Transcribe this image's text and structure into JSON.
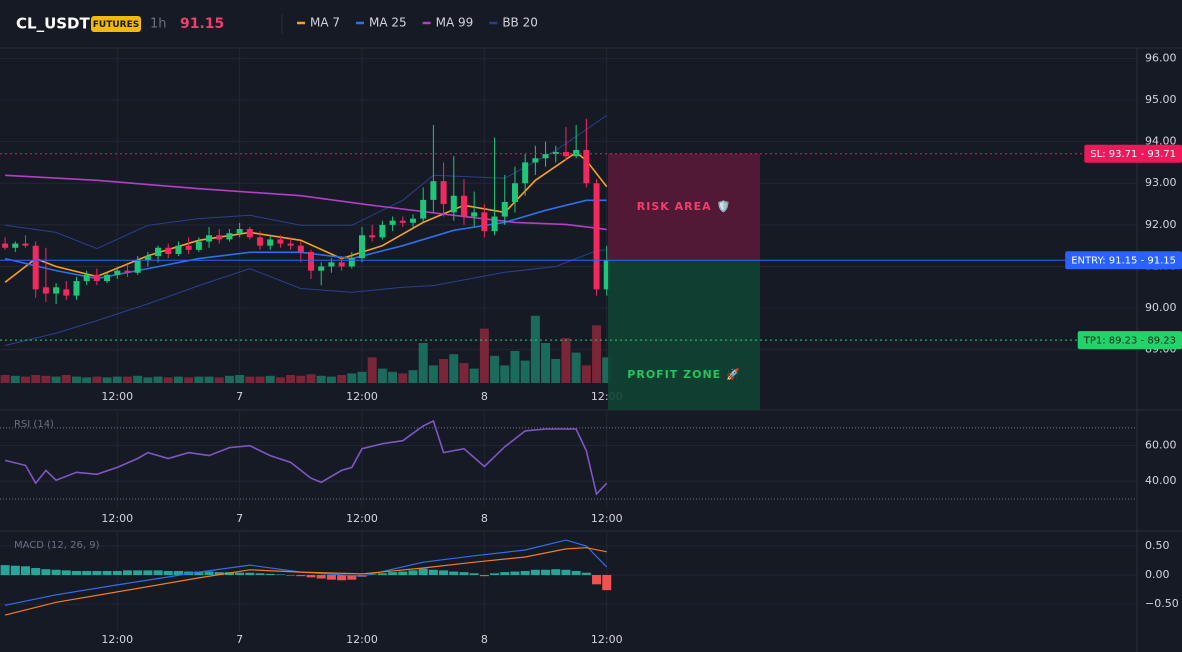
{
  "header": {
    "symbol": "CL_USDT",
    "badge": "FUTURES",
    "interval": "1h",
    "price": 91.15
  },
  "chart_data": [
    {
      "type": "candlestick",
      "up_color": "#1fc67a",
      "down_color": "#f2295f",
      "volume_up_color": "#1b6b5c",
      "volume_down_color": "#7a2538",
      "open": [
        91.55,
        91.45,
        91.55,
        91.5,
        90.5,
        90.35,
        90.45,
        90.3,
        90.65,
        90.8,
        90.65,
        90.8,
        90.9,
        90.85,
        91.15,
        91.25,
        91.45,
        91.3,
        91.5,
        91.4,
        91.6,
        91.75,
        91.65,
        91.8,
        91.9,
        91.7,
        91.5,
        91.65,
        91.55,
        91.5,
        91.35,
        90.9,
        91.0,
        91.1,
        91.0,
        91.2,
        91.75,
        91.7,
        92.0,
        92.1,
        92.05,
        92.15,
        92.6,
        93.05,
        92.3,
        92.7,
        92.2,
        92.3,
        91.85,
        92.2,
        92.55,
        93.0,
        93.5,
        93.6,
        93.7,
        93.75,
        93.65,
        93.8,
        93.0,
        90.45
      ],
      "high": [
        91.7,
        91.6,
        91.75,
        91.6,
        91.45,
        90.6,
        90.65,
        90.75,
        90.9,
        90.95,
        90.85,
        91.0,
        91.05,
        91.25,
        91.35,
        91.5,
        91.55,
        91.6,
        91.7,
        91.7,
        91.95,
        91.9,
        91.9,
        92.05,
        91.95,
        91.85,
        91.75,
        91.75,
        91.7,
        91.6,
        91.4,
        91.1,
        91.2,
        91.25,
        91.35,
        91.95,
        92.0,
        92.1,
        92.2,
        92.2,
        92.25,
        92.9,
        94.4,
        93.5,
        93.65,
        93.1,
        92.8,
        92.5,
        94.1,
        93.2,
        93.4,
        93.7,
        93.9,
        94.0,
        93.9,
        94.35,
        94.4,
        94.55,
        93.1,
        91.5
      ],
      "low": [
        91.4,
        91.35,
        91.45,
        90.25,
        90.15,
        90.1,
        90.2,
        90.2,
        90.55,
        90.55,
        90.6,
        90.7,
        90.75,
        90.8,
        91.0,
        91.1,
        91.2,
        91.25,
        91.3,
        91.35,
        91.45,
        91.55,
        91.6,
        91.7,
        91.65,
        91.4,
        91.4,
        91.45,
        91.4,
        91.1,
        90.7,
        90.55,
        90.85,
        90.9,
        90.95,
        91.1,
        91.6,
        91.65,
        91.85,
        91.95,
        91.95,
        92.05,
        92.3,
        92.2,
        92.1,
        92.0,
        91.95,
        91.7,
        91.75,
        92.0,
        92.3,
        92.7,
        93.2,
        93.4,
        93.5,
        93.55,
        93.6,
        92.9,
        90.3,
        90.3
      ],
      "close": [
        91.45,
        91.55,
        91.5,
        90.45,
        90.35,
        90.5,
        90.3,
        90.65,
        90.8,
        90.65,
        90.8,
        90.9,
        90.85,
        91.15,
        91.25,
        91.45,
        91.3,
        91.5,
        91.4,
        91.6,
        91.75,
        91.65,
        91.8,
        91.9,
        91.7,
        91.5,
        91.65,
        91.55,
        91.5,
        91.35,
        90.9,
        91.0,
        91.1,
        91.0,
        91.2,
        91.75,
        91.7,
        92.0,
        92.1,
        92.05,
        92.15,
        92.6,
        93.05,
        92.5,
        92.7,
        92.2,
        92.3,
        91.85,
        92.2,
        92.55,
        93.0,
        93.5,
        93.6,
        93.7,
        93.75,
        93.65,
        93.8,
        93.0,
        90.45,
        91.15
      ],
      "volume": [
        10,
        9,
        8,
        10,
        9,
        8,
        10,
        8,
        7,
        8,
        7,
        8,
        8,
        9,
        7,
        8,
        7,
        8,
        7,
        8,
        8,
        7,
        9,
        10,
        8,
        8,
        9,
        7,
        10,
        9,
        11,
        9,
        8,
        10,
        12,
        14,
        32,
        18,
        14,
        12,
        16,
        50,
        22,
        30,
        36,
        25,
        18,
        68,
        34,
        22,
        40,
        28,
        84,
        50,
        30,
        56,
        38,
        22,
        72,
        32
      ],
      "series": [
        {
          "name": "MA 7",
          "color": "#f7a21b",
          "x": [
            0,
            3,
            5,
            9,
            14,
            19,
            24,
            29,
            33,
            37,
            41,
            45,
            49,
            52,
            56,
            57,
            59
          ],
          "values": [
            90.62,
            91.19,
            91.0,
            90.76,
            91.26,
            91.63,
            91.82,
            91.63,
            91.19,
            91.5,
            92.06,
            92.47,
            92.3,
            93.07,
            93.74,
            93.55,
            92.92
          ]
        },
        {
          "name": "MA 25",
          "color": "#2f6fec",
          "x": [
            0,
            5,
            9,
            14,
            19,
            24,
            29,
            34,
            39,
            44,
            49,
            53,
            57,
            59
          ],
          "values": [
            91.19,
            90.9,
            90.71,
            90.95,
            91.19,
            91.34,
            91.34,
            91.19,
            91.5,
            91.87,
            92.06,
            92.35,
            92.59,
            92.59
          ]
        },
        {
          "name": "MA 99",
          "color": "#b23fc4",
          "x": [
            0,
            9,
            19,
            29,
            36,
            44,
            50,
            55,
            59
          ],
          "values": [
            93.19,
            93.07,
            92.87,
            92.7,
            92.47,
            92.23,
            92.06,
            92.01,
            91.89
          ]
        }
      ],
      "bands": {
        "name": "BB 20",
        "color": "#2a3f8f",
        "x": [
          0,
          5,
          9,
          14,
          19,
          24,
          29,
          34,
          39,
          42,
          49,
          54,
          58,
          59
        ],
        "upper": [
          91.99,
          91.82,
          91.43,
          91.99,
          92.15,
          92.23,
          91.99,
          91.99,
          92.59,
          93.19,
          93.12,
          93.79,
          94.46,
          94.63
        ],
        "lower": [
          89.1,
          89.4,
          89.7,
          90.1,
          90.54,
          90.95,
          90.47,
          90.38,
          90.5,
          90.54,
          90.86,
          91.0,
          91.38,
          91.4
        ]
      },
      "levels": [
        {
          "label": "SL: 93.71 - 93.71",
          "value": 93.71,
          "color": "#f0185a",
          "text_color": "#ffffff",
          "dotted": true
        },
        {
          "label": "ENTRY: 91.15 - 91.15",
          "value": 91.15,
          "color": "#2962ff",
          "text_color": "#ffffff",
          "dotted": false
        },
        {
          "label": "TP1: 89.23 - 89.23",
          "value": 89.23,
          "color": "#22d36b",
          "text_color": "#0b2a17",
          "dotted": true
        }
      ],
      "zones": [
        {
          "label": "RISK AREA 🛡️",
          "color": "#5c1a38",
          "text_color": "#f23d6d"
        },
        {
          "label": "PROFIT ZONE 🚀",
          "color": "#0f4332",
          "text_color": "#22c55e"
        }
      ],
      "ylim": [
        88.2,
        96.25
      ],
      "yticks": [
        {
          "value": 96,
          "label": "96.00"
        },
        {
          "value": 95,
          "label": "95.00"
        },
        {
          "value": 94,
          "label": "94.00"
        },
        {
          "value": 93,
          "label": "93.00"
        },
        {
          "value": 92,
          "label": "92.00"
        },
        {
          "value": 91,
          "label": "91.00"
        },
        {
          "value": 90,
          "label": "90.00"
        },
        {
          "value": 89,
          "label": "89.00"
        }
      ],
      "xlim": [
        -0.5,
        111
      ],
      "xticks": [
        {
          "value": 11,
          "label": "12:00"
        },
        {
          "value": 23,
          "label": "7"
        },
        {
          "value": 35,
          "label": "12:00"
        },
        {
          "value": 47,
          "label": "8"
        },
        {
          "value": 59,
          "label": "12:00"
        }
      ],
      "grid": true
    },
    {
      "type": "line",
      "title": "RSI (14)",
      "color": "#7e57c2",
      "x": [
        0,
        2,
        3,
        4,
        5,
        7,
        9,
        11,
        13,
        14,
        16,
        18,
        20,
        22,
        24,
        26,
        28,
        30,
        31,
        33,
        34,
        35,
        37,
        39,
        41,
        42,
        43,
        45,
        47,
        49,
        51,
        53,
        56,
        57,
        58,
        59
      ],
      "values": [
        51.7,
        48.9,
        38.9,
        46.1,
        40.6,
        45.0,
        43.9,
        47.8,
        52.8,
        56.1,
        52.8,
        56.1,
        54.4,
        58.9,
        60.0,
        54.4,
        50.6,
        41.7,
        39.4,
        46.1,
        47.8,
        58.3,
        61.1,
        62.8,
        71.1,
        73.9,
        56.1,
        58.3,
        48.3,
        59.4,
        68.3,
        69.4,
        69.4,
        57.2,
        32.8,
        38.9
      ],
      "levels": [
        70,
        30
      ],
      "ylim": [
        25.5,
        79.5
      ],
      "yticks": [
        {
          "value": 60,
          "label": "60.00"
        },
        {
          "value": 40,
          "label": "40.00"
        }
      ],
      "xlim": [
        -0.5,
        111
      ],
      "xticks": [
        {
          "value": 11,
          "label": "12:00"
        },
        {
          "value": 23,
          "label": "7"
        },
        {
          "value": 35,
          "label": "12:00"
        },
        {
          "value": 47,
          "label": "8"
        },
        {
          "value": 59,
          "label": "12:00"
        }
      ],
      "grid": true
    },
    {
      "type": "macd",
      "title": "MACD (12, 26, 9)",
      "up_color": "#26a69a",
      "down_color": "#ef5350",
      "histogram": [
        0.17,
        0.16,
        0.15,
        0.12,
        0.1,
        0.09,
        0.08,
        0.07,
        0.07,
        0.07,
        0.07,
        0.07,
        0.08,
        0.08,
        0.08,
        0.08,
        0.07,
        0.07,
        0.06,
        0.06,
        0.06,
        0.05,
        0.05,
        0.04,
        0.04,
        0.03,
        0.02,
        0.01,
        -0.01,
        -0.02,
        -0.04,
        -0.06,
        -0.08,
        -0.09,
        -0.08,
        -0.03,
        0.01,
        0.03,
        0.05,
        0.06,
        0.08,
        0.11,
        0.09,
        0.08,
        0.06,
        0.05,
        0.03,
        -0.02,
        0.03,
        0.05,
        0.06,
        0.07,
        0.09,
        0.09,
        0.1,
        0.09,
        0.07,
        0.04,
        -0.16,
        -0.26
      ],
      "series": [
        {
          "color": "#2f6fec",
          "x": [
            0,
            5,
            11,
            19,
            24,
            29,
            35,
            41,
            46,
            51,
            55,
            57,
            59
          ],
          "values": [
            -0.52,
            -0.34,
            -0.17,
            0.05,
            0.17,
            0.05,
            -0.02,
            0.22,
            0.33,
            0.43,
            0.6,
            0.5,
            0.14
          ]
        },
        {
          "color": "#f57c1f",
          "x": [
            0,
            5,
            11,
            19,
            24,
            29,
            35,
            41,
            46,
            51,
            55,
            57,
            59
          ],
          "values": [
            -0.69,
            -0.47,
            -0.29,
            -0.05,
            0.09,
            0.05,
            0.02,
            0.12,
            0.22,
            0.31,
            0.45,
            0.47,
            0.4
          ]
        }
      ],
      "ylim": [
        -0.98,
        0.74
      ],
      "yticks": [
        {
          "value": 0.5,
          "label": "0.50"
        },
        {
          "value": 0,
          "label": "0.00"
        },
        {
          "value": -0.5,
          "label": "−0.50"
        }
      ],
      "xlim": [
        -0.5,
        111
      ],
      "xticks": [
        {
          "value": 11,
          "label": "12:00"
        },
        {
          "value": 23,
          "label": "7"
        },
        {
          "value": 35,
          "label": "12:00"
        },
        {
          "value": 47,
          "label": "8"
        },
        {
          "value": 59,
          "label": "12:00"
        }
      ],
      "grid": true
    }
  ]
}
